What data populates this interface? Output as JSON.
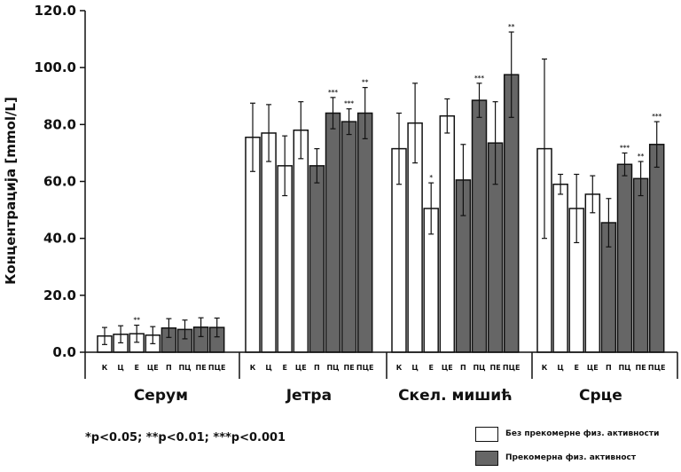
{
  "chart_data": {
    "type": "bar",
    "ylabel": "Концентрација [mmol/L]",
    "ylim": [
      0,
      120
    ],
    "yticks": [
      "0.0",
      "20.0",
      "40.0",
      "60.0",
      "80.0",
      "100.0",
      "120.0"
    ],
    "grid": false,
    "categories": [
      "К",
      "Ц",
      "Е",
      "ЦЕ",
      "П",
      "ПЦ",
      "ПЕ",
      "ПЦЕ"
    ],
    "groups": [
      {
        "name": "Серум",
        "values": [
          5.7,
          6.3,
          6.5,
          6.0,
          8.5,
          8.0,
          8.8,
          8.7
        ],
        "err": [
          3.0,
          3.0,
          3.0,
          3.0,
          3.3,
          3.3,
          3.3,
          3.3
        ],
        "sig": [
          "",
          "",
          "**",
          "",
          "",
          "",
          "",
          ""
        ]
      },
      {
        "name": "Јетра",
        "values": [
          75.5,
          77.0,
          65.5,
          78.0,
          65.5,
          84.0,
          81.0,
          84.0
        ],
        "err": [
          12.0,
          10.0,
          10.5,
          10.0,
          6.0,
          5.5,
          4.5,
          9.0
        ],
        "sig": [
          "",
          "",
          "",
          "",
          "",
          "***",
          "***",
          "**"
        ]
      },
      {
        "name": "Скел. мишић",
        "values": [
          71.5,
          80.5,
          50.5,
          83.0,
          60.5,
          88.5,
          73.5,
          97.5
        ],
        "err": [
          12.5,
          14.0,
          9.0,
          6.0,
          12.5,
          6.0,
          14.5,
          15.0
        ],
        "sig": [
          "",
          "",
          "*",
          "",
          "",
          "***",
          "",
          "**"
        ]
      },
      {
        "name": "Срце",
        "values": [
          71.5,
          59.0,
          50.5,
          55.5,
          45.5,
          66.0,
          61.0,
          73.0
        ],
        "err": [
          31.5,
          3.5,
          12.0,
          6.5,
          8.5,
          4.0,
          6.0,
          8.0
        ],
        "sig": [
          "",
          "",
          "",
          "",
          "",
          "***",
          "**",
          "***"
        ]
      }
    ],
    "series": [
      {
        "name": "Без прекомерне физ. активности",
        "color": "#ffffff",
        "categories": [
          "К",
          "Ц",
          "Е",
          "ЦЕ"
        ]
      },
      {
        "name": "Прекомерна физ. активност",
        "color": "#666666",
        "categories": [
          "П",
          "ПЦ",
          "ПЕ",
          "ПЦЕ"
        ]
      }
    ],
    "legend": "bottom-right",
    "footnote": "*p<0.05; **p<0.01; ***p<0.001"
  }
}
